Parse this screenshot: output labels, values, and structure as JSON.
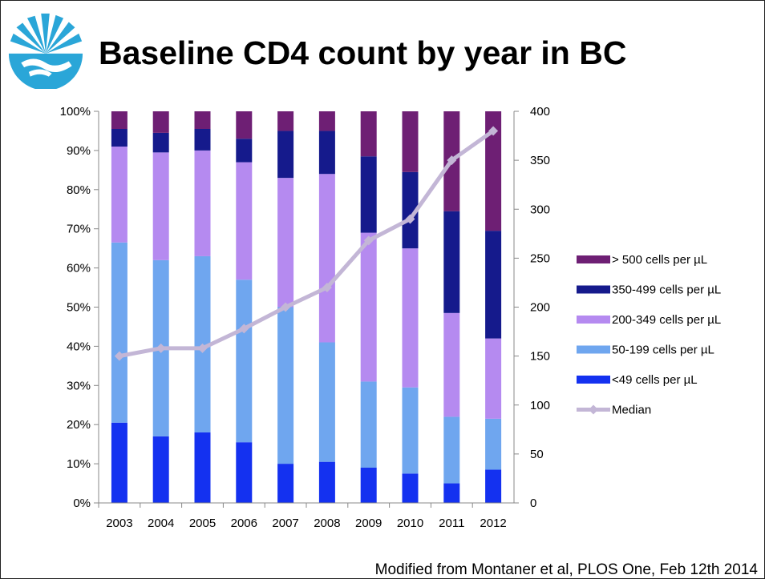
{
  "slide": {
    "title": "Baseline CD4 count by year in BC",
    "footer": "Modified from Montaner et al, PLOS One, Feb 12th 2014"
  },
  "colors": {
    "lt49": "#1431f0",
    "c50_199": "#6fa6ef",
    "c200_349": "#b58af0",
    "c350_499": "#151a8c",
    "gt500": "#6e1f74",
    "median": "#c3b6d6"
  },
  "chart_data": {
    "type": "bar",
    "stacked": true,
    "categories": [
      "2003",
      "2004",
      "2005",
      "2006",
      "2007",
      "2008",
      "2009",
      "2010",
      "2011",
      "2012"
    ],
    "y_ticks": [
      "0%",
      "10%",
      "20%",
      "30%",
      "40%",
      "50%",
      "60%",
      "70%",
      "80%",
      "90%",
      "100%"
    ],
    "ylim": [
      0,
      100
    ],
    "y2_ticks": [
      "0",
      "50",
      "100",
      "150",
      "200",
      "250",
      "300",
      "350",
      "400"
    ],
    "y2lim": [
      0,
      400
    ],
    "series": [
      {
        "name": "<49 cells per µL",
        "color_key": "lt49",
        "values": [
          20.5,
          17,
          18,
          15.5,
          10,
          10.5,
          9,
          7.5,
          5,
          8.5
        ]
      },
      {
        "name": "50-199 cells per µL",
        "color_key": "c50_199",
        "values": [
          46,
          45,
          45,
          41.5,
          40,
          30.5,
          22,
          22,
          17,
          13
        ]
      },
      {
        "name": "200-349 cells per µL",
        "color_key": "c200_349",
        "values": [
          24.5,
          27.5,
          27,
          30,
          33,
          43,
          38,
          35.5,
          26.5,
          20.5
        ]
      },
      {
        "name": "350-499 cells per µL",
        "color_key": "c350_499",
        "values": [
          4.5,
          5,
          5.5,
          6,
          12,
          11,
          19.5,
          19.5,
          26,
          27.5
        ]
      },
      {
        "name": "> 500 cells per µL",
        "color_key": "gt500",
        "values": [
          4.5,
          5.5,
          4.5,
          7,
          5,
          5,
          11.5,
          15.5,
          25.5,
          30.5
        ]
      }
    ],
    "line": {
      "name": "Median",
      "axis": "right",
      "color_key": "median",
      "values": [
        150,
        158,
        158,
        178,
        200,
        220,
        268,
        290,
        350,
        380
      ]
    },
    "legend": {
      "position": "right",
      "order": [
        "> 500 cells per µL",
        "350-499 cells per µL",
        "200-349 cells per µL",
        "50-199 cells per µL",
        "<49 cells per µL",
        "Median"
      ]
    },
    "grid": false
  }
}
